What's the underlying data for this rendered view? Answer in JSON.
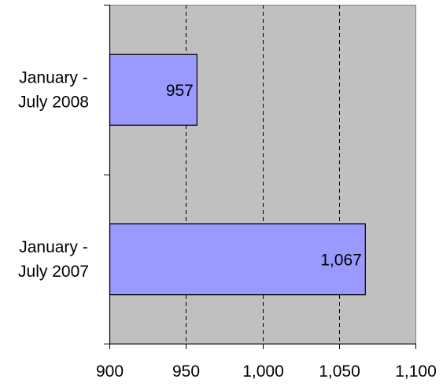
{
  "chart_data": {
    "type": "bar",
    "orientation": "horizontal",
    "title": "",
    "xlabel": "",
    "ylabel": "",
    "categories": [
      [
        "January -",
        "July 2008"
      ],
      [
        "January -",
        "July 2007"
      ]
    ],
    "values": [
      957,
      1067
    ],
    "data_labels": [
      "957",
      "1,067"
    ],
    "xlim": [
      900,
      1100
    ],
    "x_ticks": [
      900,
      950,
      1000,
      1050,
      1100
    ],
    "x_tick_labels": [
      "900",
      "950",
      "1,000",
      "1,050",
      "1,100"
    ],
    "grid": "vertical dashed",
    "legend": "none",
    "colors": {
      "bar": "#9999ff",
      "plot_background": "#c0c0c0",
      "gridline": "#000000"
    }
  }
}
